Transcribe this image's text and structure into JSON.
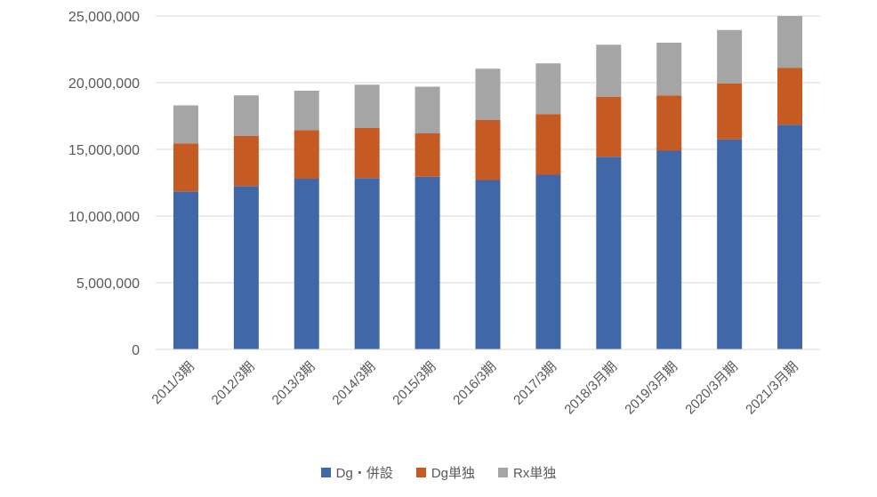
{
  "chart_data": {
    "type": "bar",
    "stacked": true,
    "categories": [
      "2011/3期",
      "2012/3期",
      "2013/3期",
      "2014/3期",
      "2015/3期",
      "2016/3期",
      "2017/3期",
      "2018/3月期",
      "2019/3月期",
      "2020/3月期",
      "2021/3月期"
    ],
    "series": [
      {
        "name": "Dg・併設",
        "color": "#4068a8",
        "values": [
          11850000,
          12250000,
          12800000,
          12850000,
          12950000,
          12700000,
          13100000,
          14450000,
          14900000,
          15750000,
          16850000
        ]
      },
      {
        "name": "Dg単独",
        "color": "#c55a22",
        "values": [
          3600000,
          3750000,
          3650000,
          3750000,
          3250000,
          4500000,
          4550000,
          4500000,
          4150000,
          4200000,
          4250000
        ]
      },
      {
        "name": "Rx単独",
        "color": "#a5a5a5",
        "values": [
          2850000,
          3050000,
          2950000,
          3250000,
          3500000,
          3850000,
          3800000,
          3900000,
          3950000,
          4000000,
          3900000
        ]
      }
    ],
    "ylim": [
      0,
      25000000
    ],
    "yticks": [
      0,
      5000000,
      10000000,
      15000000,
      20000000,
      25000000
    ],
    "ytick_labels": [
      "0",
      "5,000,000",
      "10,000,000",
      "15,000,000",
      "20,000,000",
      "25,000,000"
    ],
    "grid": true,
    "legend_position": "bottom"
  }
}
